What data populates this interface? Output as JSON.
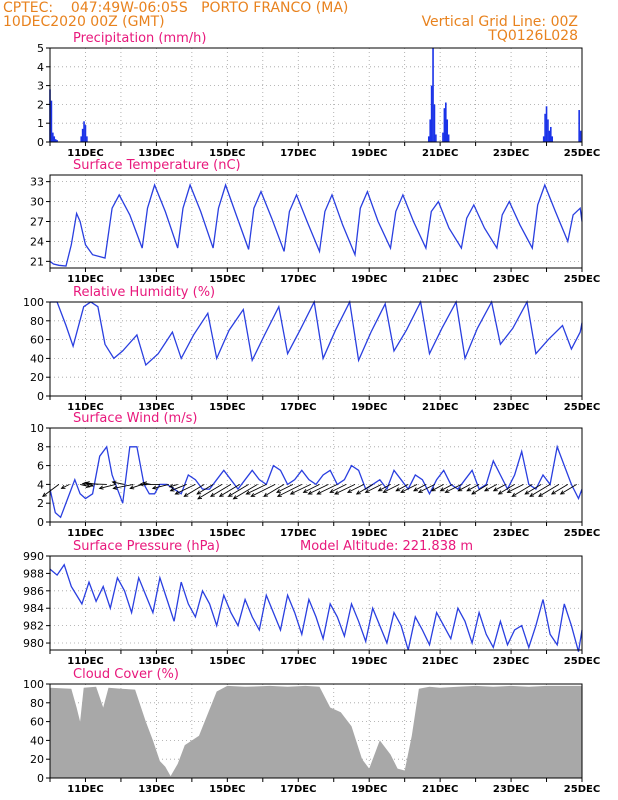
{
  "header": {
    "line1": "CPTEC:    047:49W-06:05S   PORTO FRANCO (MA)",
    "line2": "10DEC2020 00Z (GMT)",
    "right1": "Vertical Grid Line: 00Z",
    "right2": "TQ0126L028"
  },
  "colors": {
    "header": "#e8821e",
    "title": "#e8187c",
    "line": "#2a3fe0",
    "precip_bar": "#1a32e8",
    "cloud_fill": "#a8a8a8",
    "wind_arrow": "#000000",
    "grid": "#a0a0a0"
  },
  "x_axis": {
    "start": "10DEC2020 00Z",
    "end": "25DEC2020 00Z",
    "tick_labels": [
      "11DEC",
      "13DEC",
      "15DEC",
      "17DEC",
      "19DEC",
      "21DEC",
      "23DEC",
      "25DEC"
    ]
  },
  "chart_data": [
    {
      "id": "precipitation",
      "type": "bar",
      "title": "Precipitation (mm/h)",
      "ylim": [
        0,
        5
      ],
      "yticks": [
        0,
        1,
        2,
        3,
        4,
        5
      ],
      "grid": true,
      "x_unit": "day offset from 10DEC2020 00Z",
      "points": [
        [
          0.0,
          2.8
        ],
        [
          0.04,
          2.2
        ],
        [
          0.08,
          0.5
        ],
        [
          0.12,
          0.3
        ],
        [
          0.16,
          0.15
        ],
        [
          0.2,
          0.1
        ],
        [
          0.88,
          0.3
        ],
        [
          0.92,
          0.7
        ],
        [
          0.96,
          1.1
        ],
        [
          1.0,
          0.9
        ],
        [
          1.04,
          0.3
        ],
        [
          10.68,
          0.3
        ],
        [
          10.72,
          1.2
        ],
        [
          10.76,
          3.0
        ],
        [
          10.8,
          5.0
        ],
        [
          10.84,
          2.0
        ],
        [
          10.88,
          0.4
        ],
        [
          11.08,
          0.5
        ],
        [
          11.12,
          1.8
        ],
        [
          11.16,
          2.1
        ],
        [
          11.2,
          1.2
        ],
        [
          11.24,
          0.4
        ],
        [
          13.92,
          0.3
        ],
        [
          13.96,
          1.5
        ],
        [
          14.0,
          1.9
        ],
        [
          14.04,
          1.2
        ],
        [
          14.08,
          0.6
        ],
        [
          14.12,
          0.8
        ],
        [
          14.16,
          0.3
        ],
        [
          14.92,
          1.7
        ],
        [
          14.96,
          0.6
        ]
      ]
    },
    {
      "id": "temperature",
      "type": "line",
      "title": "Surface Temperature (nC)",
      "ylim": [
        20,
        34
      ],
      "yticks": [
        21,
        24,
        27,
        30,
        33
      ],
      "grid": true,
      "x": [
        0.0,
        0.1,
        0.25,
        0.45,
        0.6,
        0.75,
        0.85,
        1.0,
        1.2,
        1.55,
        1.75,
        1.95,
        2.25,
        2.6,
        2.75,
        2.95,
        3.25,
        3.6,
        3.75,
        3.95,
        4.25,
        4.6,
        4.75,
        4.95,
        5.25,
        5.6,
        5.75,
        5.95,
        6.25,
        6.6,
        6.75,
        6.95,
        7.25,
        7.6,
        7.75,
        7.95,
        8.25,
        8.6,
        8.75,
        8.95,
        9.25,
        9.6,
        9.75,
        9.95,
        10.25,
        10.6,
        10.75,
        10.95,
        11.25,
        11.6,
        11.75,
        11.95,
        12.25,
        12.6,
        12.75,
        12.95,
        13.25,
        13.6,
        13.75,
        13.95,
        14.25,
        14.6,
        14.75,
        14.95,
        15.0
      ],
      "series": [
        {
          "values": [
            21.0,
            20.6,
            20.4,
            20.3,
            23.5,
            28.2,
            27.0,
            23.5,
            22.0,
            21.5,
            29.0,
            31.0,
            28.0,
            23.0,
            29.0,
            32.5,
            28.5,
            23.0,
            29.0,
            32.5,
            28.5,
            23.0,
            29.0,
            32.5,
            28.0,
            22.8,
            29.0,
            31.5,
            27.5,
            22.5,
            28.5,
            31.0,
            27.0,
            22.5,
            28.5,
            31.0,
            26.5,
            22.0,
            29.0,
            31.5,
            27.0,
            23.0,
            28.5,
            31.0,
            27.0,
            23.0,
            28.5,
            30.0,
            26.0,
            23.0,
            27.5,
            29.5,
            26.0,
            23.0,
            28.0,
            30.0,
            26.5,
            23.0,
            29.5,
            32.5,
            28.5,
            24.0,
            28.0,
            29.0,
            27.0
          ]
        }
      ]
    },
    {
      "id": "humidity",
      "type": "line",
      "title": "Relative Humidity (%)",
      "ylim": [
        0,
        100
      ],
      "yticks": [
        0,
        20,
        40,
        60,
        80,
        100
      ],
      "grid": true,
      "x": [
        0.0,
        0.2,
        0.45,
        0.65,
        0.95,
        1.15,
        1.35,
        1.55,
        1.8,
        2.05,
        2.45,
        2.7,
        3.05,
        3.45,
        3.7,
        4.05,
        4.45,
        4.7,
        5.05,
        5.45,
        5.7,
        6.05,
        6.45,
        6.7,
        7.05,
        7.45,
        7.7,
        8.05,
        8.45,
        8.7,
        9.05,
        9.45,
        9.7,
        10.05,
        10.45,
        10.7,
        11.05,
        11.45,
        11.7,
        12.05,
        12.45,
        12.7,
        13.05,
        13.45,
        13.7,
        14.05,
        14.45,
        14.7,
        14.95,
        15.0
      ],
      "series": [
        {
          "values": [
            100,
            100,
            75,
            53,
            95,
            100,
            95,
            55,
            40,
            48,
            65,
            33,
            45,
            68,
            40,
            65,
            88,
            40,
            70,
            92,
            38,
            65,
            95,
            45,
            70,
            100,
            40,
            70,
            100,
            38,
            68,
            98,
            48,
            70,
            100,
            45,
            72,
            100,
            40,
            72,
            100,
            55,
            72,
            100,
            45,
            60,
            75,
            50,
            68,
            78
          ]
        }
      ]
    },
    {
      "id": "wind",
      "type": "line",
      "title": "Surface Wind (m/s)",
      "ylim": [
        0,
        10
      ],
      "yticks": [
        0,
        2,
        4,
        6,
        8,
        10
      ],
      "grid": true,
      "x": [
        0.0,
        0.15,
        0.3,
        0.5,
        0.7,
        0.85,
        1.0,
        1.2,
        1.4,
        1.6,
        1.75,
        1.95,
        2.05,
        2.25,
        2.45,
        2.65,
        2.8,
        2.95,
        3.1,
        3.3,
        3.5,
        3.7,
        3.9,
        4.1,
        4.3,
        4.5,
        4.7,
        4.9,
        5.1,
        5.3,
        5.5,
        5.7,
        5.9,
        6.1,
        6.3,
        6.5,
        6.7,
        6.9,
        7.1,
        7.3,
        7.5,
        7.7,
        7.9,
        8.1,
        8.3,
        8.5,
        8.7,
        8.9,
        9.1,
        9.3,
        9.5,
        9.7,
        9.9,
        10.1,
        10.3,
        10.5,
        10.7,
        10.9,
        11.1,
        11.3,
        11.5,
        11.7,
        11.9,
        12.1,
        12.3,
        12.5,
        12.7,
        12.9,
        13.1,
        13.3,
        13.5,
        13.7,
        13.9,
        14.1,
        14.3,
        14.5,
        14.7,
        14.9,
        15.0
      ],
      "series": [
        {
          "values": [
            3.5,
            1.0,
            0.5,
            2.5,
            4.5,
            3.0,
            2.5,
            3.0,
            7.0,
            8.0,
            5.0,
            3.0,
            2.0,
            8.0,
            8.0,
            4.0,
            3.0,
            3.0,
            4.0,
            4.0,
            3.5,
            3.0,
            5.0,
            4.5,
            3.5,
            3.5,
            4.5,
            5.5,
            4.5,
            3.5,
            4.5,
            5.5,
            4.5,
            4.0,
            6.0,
            5.5,
            4.0,
            4.5,
            5.5,
            4.5,
            4.0,
            5.0,
            5.5,
            4.0,
            4.5,
            6.0,
            5.5,
            3.5,
            4.0,
            4.5,
            3.5,
            5.5,
            4.5,
            3.5,
            5.0,
            4.5,
            3.0,
            4.5,
            5.5,
            4.0,
            3.5,
            4.5,
            5.5,
            3.5,
            4.0,
            6.5,
            5.0,
            3.5,
            5.0,
            7.5,
            4.0,
            3.5,
            5.0,
            4.0,
            8.0,
            6.0,
            4.0,
            2.5,
            3.5
          ]
        }
      ],
      "wind_vectors": {
        "x": [
          0.25,
          0.55,
          0.85,
          1.1,
          1.35,
          1.6,
          1.85,
          2.1,
          2.35,
          2.6,
          2.85,
          3.1,
          3.35,
          3.6,
          3.85,
          4.1,
          4.35,
          4.6,
          4.85,
          5.1,
          5.35,
          5.6,
          5.85,
          6.1,
          6.35,
          6.6,
          6.85,
          7.1,
          7.35,
          7.6,
          7.85,
          8.1,
          8.35,
          8.6,
          8.85,
          9.1,
          9.35,
          9.6,
          9.85,
          10.1,
          10.35,
          10.6,
          10.85,
          11.1,
          11.35,
          11.6,
          11.85,
          12.1,
          12.35,
          12.6,
          12.85,
          13.1,
          13.35,
          13.6,
          13.85,
          14.1,
          14.35,
          14.6,
          14.85
        ],
        "u": [
          -2.0,
          -1.0,
          1.2,
          0.5,
          -1.5,
          -3.0,
          -2.0,
          -1.5,
          -2.5,
          -1.5,
          -1.0,
          -2.5,
          -2.0,
          -1.0,
          -2.0,
          -2.5,
          -2.5,
          -2.0,
          -3.0,
          -2.5,
          -2.5,
          -2.5,
          -3.0,
          -2.5,
          -3.0,
          -2.5,
          -2.0,
          -3.0,
          -2.5,
          -2.0,
          -2.5,
          -2.5,
          -2.0,
          -2.5,
          -2.0,
          -2.0,
          -2.0,
          -1.5,
          -2.0,
          -1.5,
          -2.0,
          -1.5,
          -2.0,
          -1.5,
          -1.5,
          -2.0,
          -1.5,
          -1.5,
          -2.0,
          -1.5,
          -1.5,
          -2.0,
          -2.0,
          -2.5,
          -2.0,
          -2.5,
          -2.5,
          -2.0,
          -2.0
        ],
        "v": [
          -1.5,
          -0.5,
          -0.3,
          -0.2,
          0.2,
          0.1,
          -0.5,
          0.3,
          -0.5,
          -0.5,
          0.2,
          0.0,
          -0.5,
          -0.3,
          -0.8,
          -1.2,
          -1.5,
          -1.2,
          -1.8,
          -1.5,
          -1.5,
          -1.5,
          -1.8,
          -1.2,
          -1.5,
          -1.5,
          -1.0,
          -1.5,
          -1.2,
          -1.0,
          -1.2,
          -1.2,
          -1.0,
          -1.2,
          -1.0,
          -1.2,
          -1.0,
          -0.8,
          -1.0,
          -0.8,
          -1.0,
          -0.8,
          -1.0,
          -0.8,
          -0.8,
          -1.0,
          -0.8,
          -0.8,
          -1.2,
          -0.8,
          -0.8,
          -1.2,
          -1.0,
          -1.5,
          -1.2,
          -1.5,
          -1.5,
          -1.2,
          -1.2
        ]
      }
    },
    {
      "id": "pressure",
      "type": "line",
      "title": "Surface Pressure (hPa)",
      "annotation": "Model Altitude: 221.838 m",
      "ylim": [
        979.2,
        990
      ],
      "yticks": [
        980,
        982,
        984,
        986,
        988,
        990
      ],
      "grid": true,
      "x": [
        0.0,
        0.2,
        0.4,
        0.6,
        0.9,
        1.1,
        1.3,
        1.5,
        1.7,
        1.9,
        2.1,
        2.3,
        2.5,
        2.7,
        2.9,
        3.1,
        3.3,
        3.5,
        3.7,
        3.9,
        4.1,
        4.3,
        4.5,
        4.7,
        4.9,
        5.1,
        5.3,
        5.5,
        5.7,
        5.9,
        6.1,
        6.3,
        6.5,
        6.7,
        6.9,
        7.1,
        7.3,
        7.5,
        7.7,
        7.9,
        8.1,
        8.3,
        8.5,
        8.7,
        8.9,
        9.1,
        9.3,
        9.5,
        9.7,
        9.9,
        10.1,
        10.3,
        10.5,
        10.7,
        10.9,
        11.1,
        11.3,
        11.5,
        11.7,
        11.9,
        12.1,
        12.3,
        12.5,
        12.7,
        12.9,
        13.1,
        13.3,
        13.5,
        13.7,
        13.9,
        14.1,
        14.3,
        14.5,
        14.7,
        14.9,
        15.0
      ],
      "series": [
        {
          "values": [
            988.5,
            987.8,
            989.0,
            986.5,
            984.5,
            987.0,
            984.8,
            986.5,
            984.0,
            987.5,
            986.0,
            983.5,
            987.5,
            985.5,
            983.5,
            987.5,
            985.0,
            982.5,
            987.0,
            984.5,
            983.0,
            986.0,
            984.5,
            982.0,
            985.5,
            983.5,
            982.0,
            985.0,
            983.0,
            981.5,
            985.5,
            983.5,
            981.5,
            985.5,
            983.5,
            981.0,
            985.0,
            983.0,
            980.5,
            984.5,
            983.0,
            980.8,
            984.5,
            982.5,
            980.2,
            984.0,
            982.0,
            980.0,
            983.5,
            982.0,
            979.2,
            983.0,
            981.5,
            979.8,
            983.5,
            982.0,
            980.5,
            984.0,
            982.5,
            980.0,
            983.5,
            981.0,
            979.5,
            982.5,
            979.8,
            981.5,
            982.0,
            979.5,
            982.0,
            985.0,
            981.0,
            979.8,
            984.5,
            982.0,
            979.0,
            981.5
          ]
        }
      ]
    },
    {
      "id": "cloud",
      "type": "area",
      "title": "Cloud Cover (%)",
      "ylim": [
        0,
        100
      ],
      "yticks": [
        0,
        20,
        40,
        60,
        80,
        100
      ],
      "grid": true,
      "x": [
        0.0,
        0.6,
        0.75,
        0.85,
        0.95,
        1.3,
        1.5,
        1.65,
        2.0,
        2.4,
        2.7,
        2.9,
        3.1,
        3.25,
        3.4,
        3.6,
        3.8,
        4.2,
        4.7,
        5.0,
        5.5,
        6.2,
        6.7,
        7.2,
        7.6,
        7.9,
        8.2,
        8.5,
        8.8,
        9.0,
        9.3,
        9.6,
        9.8,
        10.0,
        10.2,
        10.4,
        10.7,
        11.0,
        11.5,
        12.0,
        12.5,
        13.0,
        13.5,
        14.0,
        14.5,
        15.0
      ],
      "series": [
        {
          "values": [
            96,
            95,
            75,
            60,
            96,
            97,
            75,
            96,
            95,
            94,
            60,
            40,
            18,
            12,
            2,
            15,
            35,
            45,
            92,
            98,
            97,
            98,
            97,
            98,
            97,
            75,
            70,
            55,
            20,
            10,
            40,
            25,
            10,
            8,
            45,
            95,
            97,
            96,
            97,
            98,
            97,
            98,
            97,
            98,
            98,
            98
          ]
        }
      ]
    }
  ]
}
